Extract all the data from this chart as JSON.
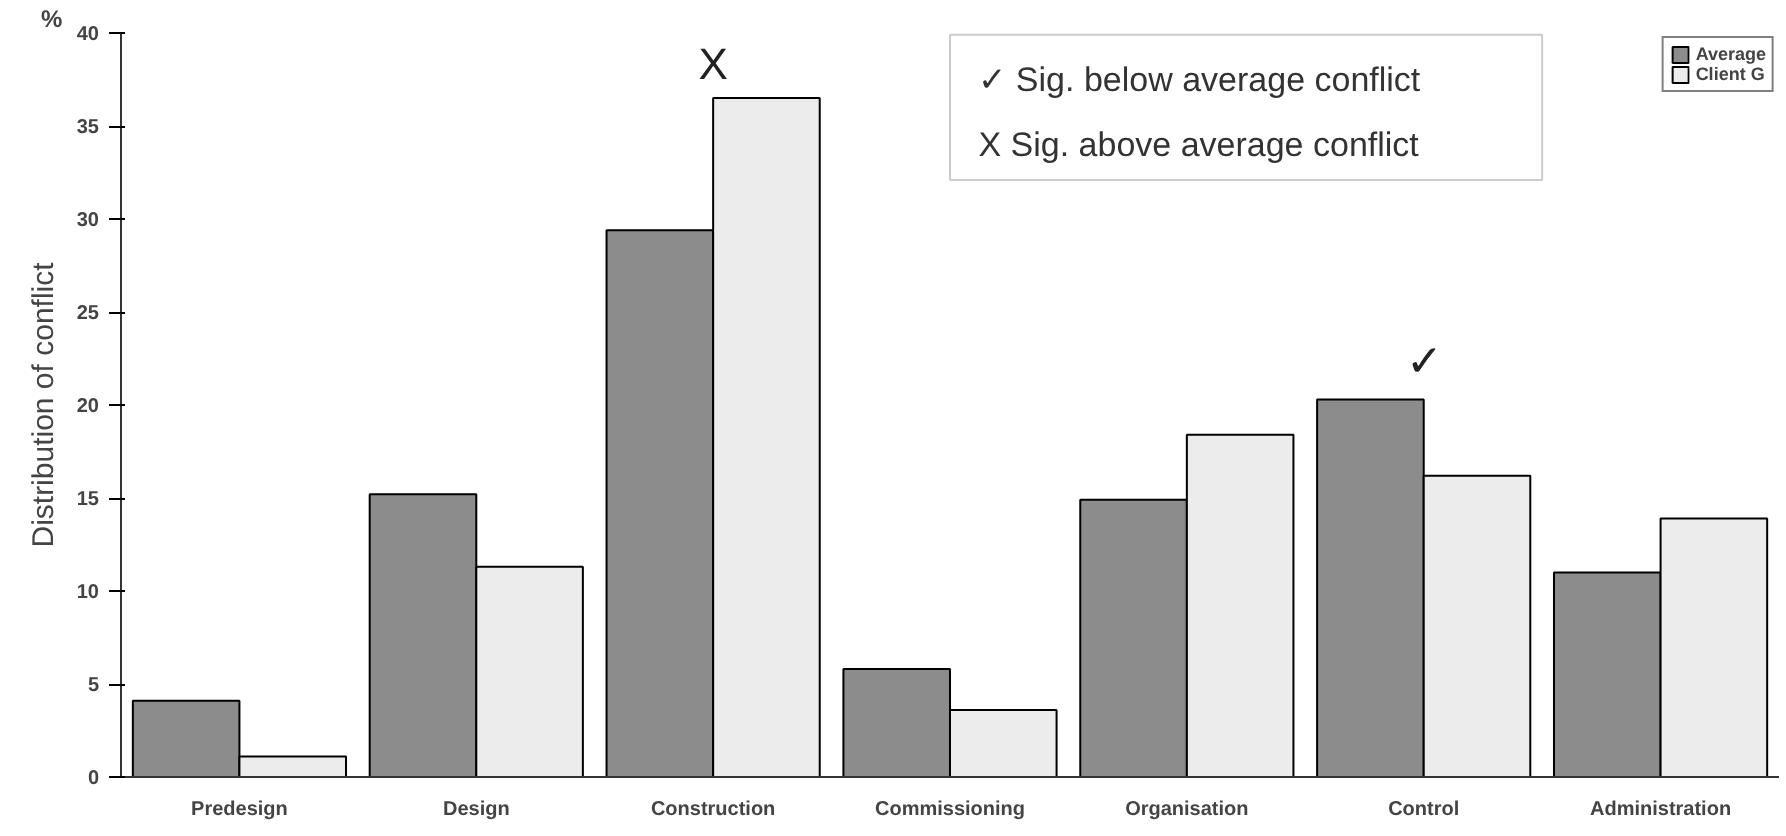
{
  "chart_data": {
    "type": "bar",
    "ylabel": "Distribution of conflict",
    "categories": [
      "Predesign",
      "Design",
      "Construction",
      "Commissioning",
      "Organisation",
      "Control",
      "Administration"
    ],
    "series": [
      {
        "name": "Average",
        "color": "#8c8c8c",
        "values": [
          4.1,
          15.2,
          29.4,
          5.8,
          14.9,
          20.3,
          11.0
        ]
      },
      {
        "name": "Client G",
        "color": "#ececec",
        "values": [
          1.1,
          11.3,
          36.5,
          3.6,
          18.4,
          16.2,
          13.9
        ]
      }
    ],
    "ylim": [
      0,
      40
    ],
    "yticks": [
      0,
      5,
      10,
      15,
      20,
      25,
      30,
      35,
      40
    ],
    "grid": false,
    "legend": "top right",
    "annotations": [
      "%",
      "X",
      "✓",
      "✓   Sig. below average conflict",
      "X   Sig. above average conflict"
    ]
  }
}
